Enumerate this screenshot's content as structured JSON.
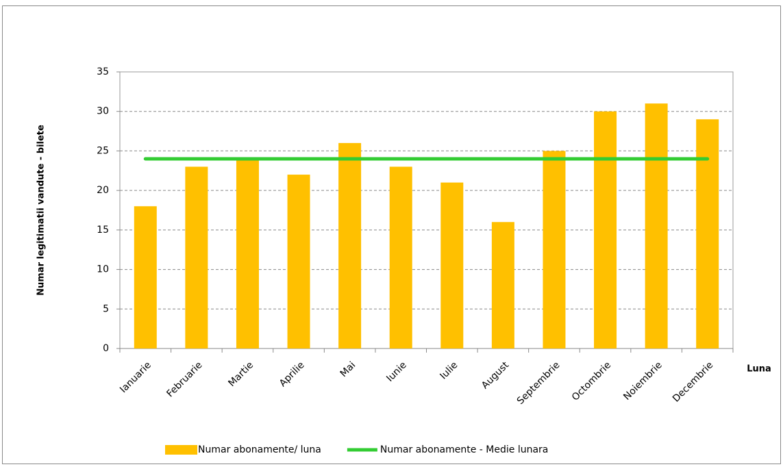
{
  "chart_data": {
    "type": "bar",
    "y_label": "Numar legitimatii vandute - bilete",
    "x_label": "Luna",
    "categories": [
      "Ianuarie",
      "Februarie",
      "Martie",
      "Aprilie",
      "Mai",
      "Iunie",
      "Iulie",
      "August",
      "Septembrie",
      "Octombrie",
      "Noiembrie",
      "Decembrie"
    ],
    "series": [
      {
        "name": "Numar abonamente/ luna",
        "type": "bar",
        "color": "#ffc000",
        "values": [
          18,
          23,
          24,
          22,
          26,
          23,
          21,
          16,
          25,
          30,
          31,
          29
        ]
      },
      {
        "name": "Numar abonamente - Medie lunara",
        "type": "line",
        "color": "#33cc33",
        "values": [
          24,
          24,
          24,
          24,
          24,
          24,
          24,
          24,
          24,
          24,
          24,
          24
        ]
      }
    ],
    "ylim": [
      0,
      35
    ],
    "yticks": [
      0,
      5,
      10,
      15,
      20,
      25,
      30,
      35
    ],
    "grid": true,
    "legend": "bottom"
  }
}
